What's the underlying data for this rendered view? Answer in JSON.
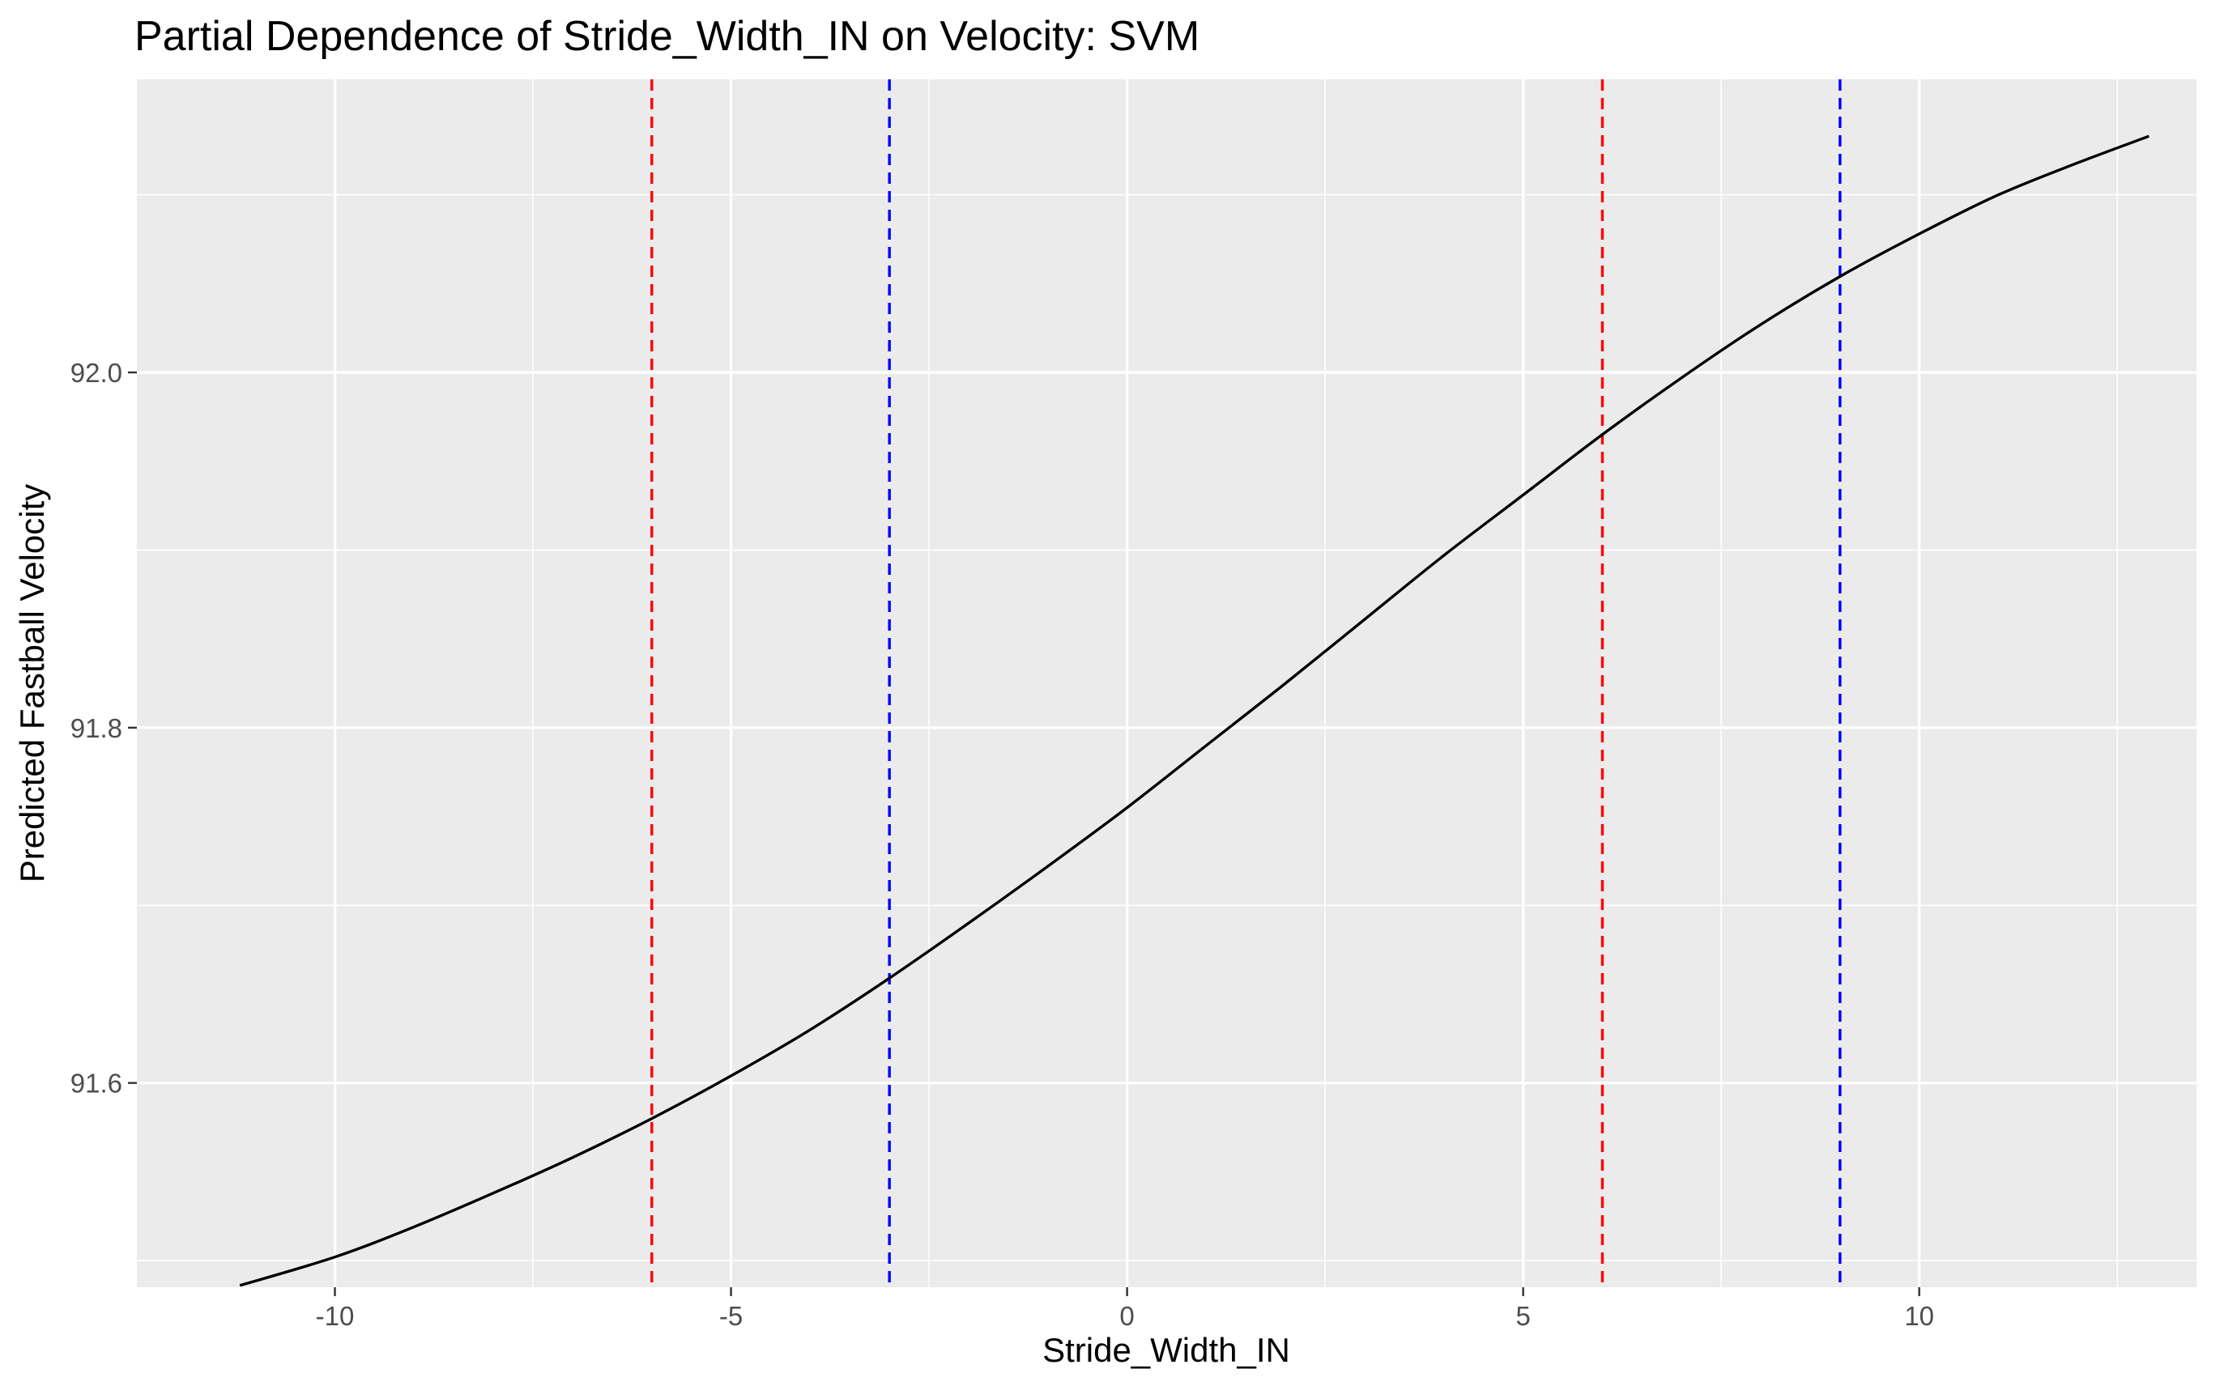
{
  "chart_data": {
    "type": "line",
    "title": "Partial Dependence of Stride_Width_IN on Velocity: SVM",
    "xlabel": "Stride_Width_IN",
    "ylabel": "Predicted Fastball Velocity",
    "xlim": [
      -12.5,
      13.5
    ],
    "ylim": [
      91.485,
      92.165
    ],
    "x_ticks": [
      -10,
      -5,
      0,
      5,
      10
    ],
    "x_tick_labels": [
      "-10",
      "-5",
      "0",
      "5",
      "10"
    ],
    "y_ticks": [
      91.6,
      91.8,
      92.0
    ],
    "y_tick_labels": [
      "91.6",
      "91.8",
      "92.0"
    ],
    "x_minor_ticks": [
      -7.5,
      -2.5,
      2.5,
      7.5,
      12.5
    ],
    "y_minor_ticks": [
      91.5,
      91.7,
      91.9,
      92.1
    ],
    "grid": true,
    "legend": "none",
    "panel_background": "#ebebeb",
    "series": [
      {
        "color": "#000000",
        "x": [
          -11.2,
          -10,
          -9,
          -8,
          -7,
          -6,
          -5,
          -4,
          -3,
          -2,
          -1,
          0,
          1,
          2,
          3,
          4,
          5,
          6,
          7,
          8,
          9,
          10,
          11,
          12,
          12.9
        ],
        "y": [
          91.486,
          91.502,
          91.519,
          91.538,
          91.558,
          91.58,
          91.604,
          91.63,
          91.659,
          91.69,
          91.722,
          91.755,
          91.79,
          91.825,
          91.861,
          91.897,
          91.931,
          91.965,
          91.997,
          92.027,
          92.054,
          92.078,
          92.1,
          92.118,
          92.133
        ]
      }
    ],
    "vlines": [
      {
        "x": -6,
        "color": "#ff0000",
        "style": "dashed"
      },
      {
        "x": -3,
        "color": "#0000ff",
        "style": "dashed"
      },
      {
        "x": 6,
        "color": "#ff0000",
        "style": "dashed"
      },
      {
        "x": 9,
        "color": "#0000ff",
        "style": "dashed"
      }
    ]
  }
}
